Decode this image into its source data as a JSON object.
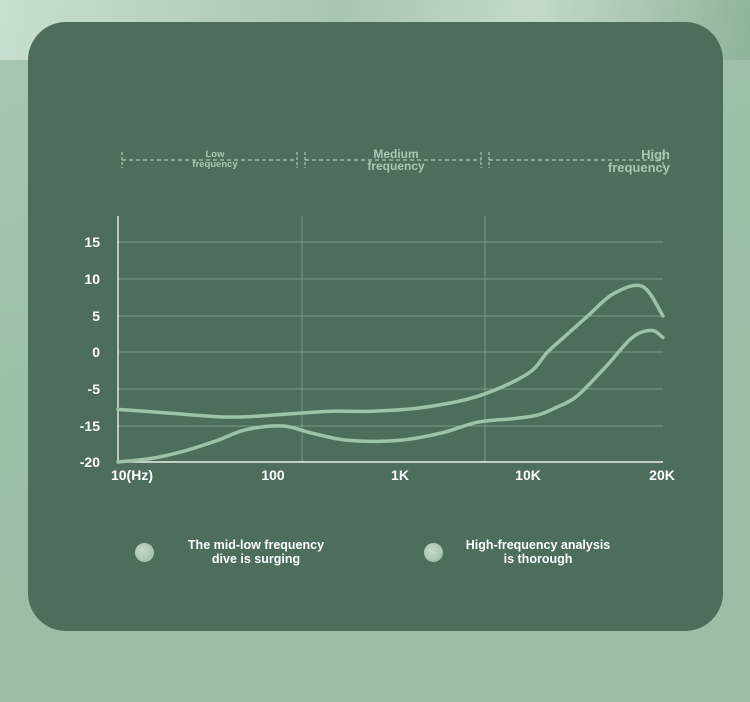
{
  "bands": [
    {
      "label": "Low\nfrequency"
    },
    {
      "label": "Medium\nfrequency"
    },
    {
      "label": "High\nfrequency"
    }
  ],
  "chart_data": {
    "type": "line",
    "x_scale": "log",
    "xlim": [
      10,
      20000
    ],
    "ylim": [
      -20,
      18
    ],
    "x_ticks": [
      10,
      100,
      1000,
      10000,
      20000
    ],
    "x_tick_labels": [
      "10(Hz)",
      "100",
      "1K",
      "10K",
      "20K"
    ],
    "y_ticks": [
      15,
      10,
      5,
      0,
      -5,
      -15,
      -20
    ],
    "y_tick_labels": [
      "15",
      "10",
      "5",
      "0",
      "-5",
      "-15",
      "-20"
    ],
    "grid": true,
    "colors": {
      "series_a": "#9cc3a7",
      "series_b": "#9cc3a7",
      "grid": "#7a9a88",
      "axis": "#e8f0ea"
    },
    "series": [
      {
        "name": "The mid-low frequency dive is surging",
        "x": [
          10,
          20,
          40,
          60,
          90,
          130,
          200,
          350,
          700,
          1500,
          3000,
          4000,
          5000,
          7000,
          10000,
          15000,
          20000
        ],
        "y": [
          -10.5,
          -11.5,
          -12.5,
          -12.5,
          -12,
          -11.5,
          -11,
          -11,
          -10,
          -7,
          -3,
          0,
          2,
          5,
          8,
          9,
          5
        ]
      },
      {
        "name": "High-frequency analysis is thorough",
        "x": [
          10,
          16,
          25,
          40,
          60,
          100,
          150,
          250,
          500,
          900,
          1500,
          2500,
          3500,
          4500,
          6000,
          9000,
          13000,
          17000,
          20000
        ],
        "y": [
          -20,
          -19.5,
          -18.5,
          -17,
          -15.5,
          -15,
          -16,
          -17,
          -17,
          -16,
          -14,
          -13,
          -12,
          -10,
          -7,
          -2,
          2,
          3,
          2
        ]
      }
    ],
    "legend_position": "bottom"
  }
}
